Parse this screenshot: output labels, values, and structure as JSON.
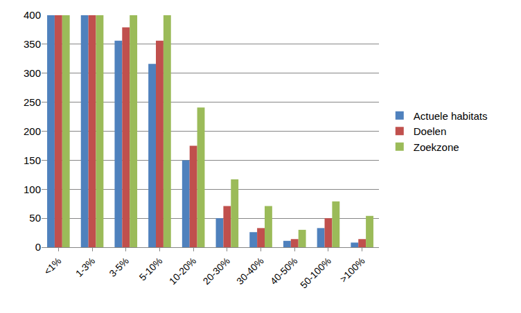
{
  "chart_data": {
    "type": "bar",
    "categories": [
      "<1%",
      "1-3%",
      "3-5%",
      "5-10%",
      "10-20%",
      "20-30%",
      "30-40%",
      "40-50%",
      "50-100%",
      ">100%"
    ],
    "series": [
      {
        "name": "Actuele habitats",
        "color": "#4f81bd",
        "values": [
          400,
          400,
          356,
          316,
          150,
          50,
          26,
          11,
          33,
          8
        ]
      },
      {
        "name": "Doelen",
        "color": "#c0504d",
        "values": [
          400,
          400,
          379,
          356,
          175,
          71,
          33,
          14,
          50,
          14
        ]
      },
      {
        "name": "Zoekzone",
        "color": "#9bbb59",
        "values": [
          400,
          400,
          400,
          400,
          241,
          117,
          71,
          30,
          79,
          54
        ]
      }
    ],
    "ylim": [
      0,
      400
    ],
    "yticks": [
      0,
      50,
      100,
      150,
      200,
      250,
      300,
      350,
      400
    ],
    "grid": true,
    "legend": "right"
  }
}
